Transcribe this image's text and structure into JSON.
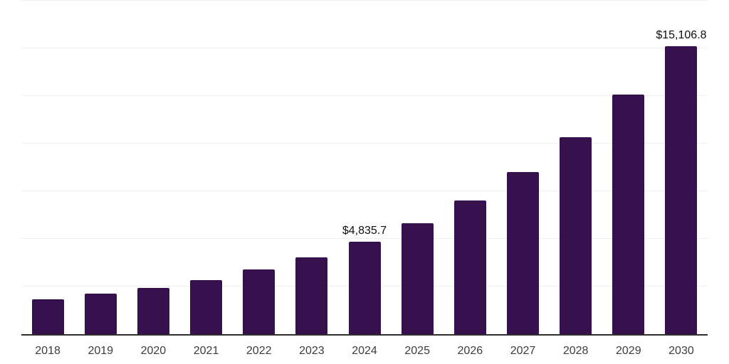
{
  "chart_data": {
    "type": "bar",
    "title": "",
    "xlabel": "",
    "ylabel": "",
    "categories": [
      "2018",
      "2019",
      "2020",
      "2021",
      "2022",
      "2023",
      "2024",
      "2025",
      "2026",
      "2027",
      "2028",
      "2029",
      "2030"
    ],
    "values": [
      1830,
      2130,
      2420,
      2840,
      3390,
      4030,
      4835.7,
      5820,
      7010,
      8500,
      10350,
      12570,
      15106.8
    ],
    "data_labels": {
      "2024": "$4,835.7",
      "2030": "$15,106.8"
    },
    "ylim": [
      0,
      17500
    ],
    "gridline_step": 2500,
    "grid": true,
    "legend": false,
    "y_axis_labels_visible": false,
    "colors": {
      "bar": "#37114e",
      "axis_line": "#2e2e2e",
      "gridline": "#f0f0f0",
      "tick_label": "#3d3d3d",
      "data_label": "#0f0f0f",
      "background": "#ffffff"
    }
  }
}
